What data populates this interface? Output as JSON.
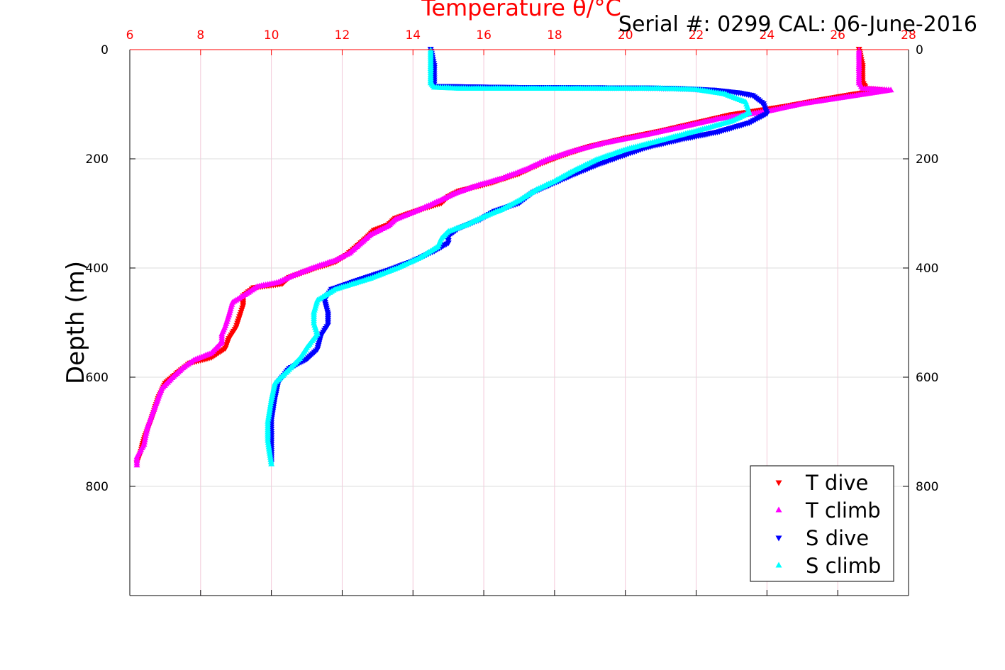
{
  "chart_data": {
    "type": "scatter",
    "title": "",
    "top_axis_label": "Temperature θ/°C",
    "annotation": "Serial #: 0299 CAL: 06-June-2016",
    "xlabel": "",
    "ylabel": "Depth (m)",
    "xlim": [
      6,
      28
    ],
    "ylim": [
      0,
      1000
    ],
    "y_reversed": true,
    "x_ticks": [
      "6",
      "8",
      "10",
      "12",
      "14",
      "16",
      "18",
      "20",
      "22",
      "24",
      "26",
      "28"
    ],
    "y_ticks": [
      "0",
      "200",
      "400",
      "600",
      "800"
    ],
    "grid": true,
    "legend_position": "bottom-right",
    "colors": {
      "axis_top": "#ff0000",
      "grid_x": "#f2c8d8",
      "grid_y": "#dddddd"
    },
    "series": [
      {
        "name": "T dive",
        "marker": "triangle-down",
        "color": "#ff0000",
        "points": [
          [
            26.6,
            0
          ],
          [
            26.7,
            30
          ],
          [
            26.7,
            60
          ],
          [
            26.8,
            72
          ],
          [
            27.3,
            75
          ],
          [
            26.5,
            82
          ],
          [
            25.5,
            93
          ],
          [
            24.5,
            105
          ],
          [
            23.0,
            120
          ],
          [
            21.8,
            138
          ],
          [
            21.0,
            150
          ],
          [
            20.0,
            163
          ],
          [
            19.0,
            178
          ],
          [
            18.2,
            195
          ],
          [
            17.6,
            210
          ],
          [
            17.0,
            228
          ],
          [
            16.2,
            245
          ],
          [
            15.3,
            260
          ],
          [
            15.0,
            270
          ],
          [
            14.8,
            282
          ],
          [
            14.3,
            292
          ],
          [
            13.8,
            303
          ],
          [
            13.5,
            310
          ],
          [
            13.3,
            322
          ],
          [
            12.9,
            332
          ],
          [
            12.7,
            345
          ],
          [
            12.4,
            362
          ],
          [
            12.1,
            378
          ],
          [
            11.8,
            390
          ],
          [
            11.2,
            402
          ],
          [
            10.5,
            418
          ],
          [
            10.3,
            430
          ],
          [
            9.5,
            437
          ],
          [
            9.2,
            452
          ],
          [
            9.2,
            470
          ],
          [
            9.1,
            490
          ],
          [
            9.0,
            510
          ],
          [
            8.8,
            530
          ],
          [
            8.7,
            548
          ],
          [
            8.3,
            565
          ],
          [
            7.7,
            575
          ],
          [
            7.4,
            590
          ],
          [
            7.0,
            612
          ],
          [
            6.8,
            640
          ],
          [
            6.6,
            680
          ],
          [
            6.4,
            715
          ],
          [
            6.3,
            740
          ],
          [
            6.2,
            758
          ]
        ]
      },
      {
        "name": "T climb",
        "marker": "triangle-up",
        "color": "#ff00ff",
        "points": [
          [
            26.6,
            0
          ],
          [
            26.6,
            30
          ],
          [
            26.6,
            60
          ],
          [
            26.7,
            70
          ],
          [
            27.5,
            73
          ],
          [
            26.3,
            85
          ],
          [
            25.0,
            98
          ],
          [
            24.0,
            112
          ],
          [
            22.6,
            126
          ],
          [
            21.5,
            142
          ],
          [
            20.5,
            156
          ],
          [
            19.4,
            170
          ],
          [
            18.5,
            185
          ],
          [
            17.8,
            200
          ],
          [
            17.2,
            218
          ],
          [
            16.5,
            235
          ],
          [
            15.8,
            248
          ],
          [
            15.2,
            262
          ],
          [
            14.5,
            283
          ],
          [
            14.0,
            297
          ],
          [
            13.5,
            310
          ],
          [
            13.3,
            322
          ],
          [
            12.8,
            338
          ],
          [
            12.5,
            355
          ],
          [
            12.2,
            372
          ],
          [
            11.8,
            385
          ],
          [
            11.2,
            398
          ],
          [
            10.6,
            413
          ],
          [
            10.2,
            425
          ],
          [
            9.6,
            433
          ],
          [
            9.3,
            446
          ],
          [
            8.9,
            462
          ],
          [
            8.8,
            485
          ],
          [
            8.7,
            505
          ],
          [
            8.6,
            520
          ],
          [
            8.6,
            535
          ],
          [
            8.3,
            555
          ],
          [
            7.8,
            568
          ],
          [
            7.5,
            582
          ],
          [
            7.2,
            600
          ],
          [
            6.9,
            620
          ],
          [
            6.7,
            655
          ],
          [
            6.5,
            690
          ],
          [
            6.4,
            722
          ],
          [
            6.2,
            745
          ],
          [
            6.2,
            760
          ]
        ]
      },
      {
        "name": "S dive",
        "marker": "triangle-down",
        "color": "#0000ff",
        "points": [
          [
            14.5,
            0
          ],
          [
            14.6,
            30
          ],
          [
            14.6,
            60
          ],
          [
            14.6,
            68
          ],
          [
            16.7,
            70
          ],
          [
            20.6,
            71
          ],
          [
            21.5,
            72
          ],
          [
            22.5,
            75
          ],
          [
            23.2,
            80
          ],
          [
            23.6,
            85
          ],
          [
            23.9,
            100
          ],
          [
            24.0,
            118
          ],
          [
            23.5,
            135
          ],
          [
            22.6,
            152
          ],
          [
            21.6,
            165
          ],
          [
            20.6,
            180
          ],
          [
            19.8,
            198
          ],
          [
            19.2,
            212
          ],
          [
            18.6,
            228
          ],
          [
            18.0,
            245
          ],
          [
            17.4,
            262
          ],
          [
            17.0,
            282
          ],
          [
            16.3,
            297
          ],
          [
            15.9,
            312
          ],
          [
            15.3,
            328
          ],
          [
            15.0,
            342
          ],
          [
            15.0,
            355
          ],
          [
            14.6,
            370
          ],
          [
            14.0,
            388
          ],
          [
            13.3,
            405
          ],
          [
            12.5,
            422
          ],
          [
            11.7,
            440
          ],
          [
            11.5,
            460
          ],
          [
            11.6,
            485
          ],
          [
            11.6,
            505
          ],
          [
            11.4,
            525
          ],
          [
            11.3,
            550
          ],
          [
            11.0,
            568
          ],
          [
            10.5,
            585
          ],
          [
            10.2,
            610
          ],
          [
            10.1,
            640
          ],
          [
            10.0,
            680
          ],
          [
            10.0,
            720
          ],
          [
            10.0,
            758
          ]
        ]
      },
      {
        "name": "S climb",
        "marker": "triangle-up",
        "color": "#00ffff",
        "points": [
          [
            14.5,
            0
          ],
          [
            14.5,
            30
          ],
          [
            14.5,
            60
          ],
          [
            14.6,
            68
          ],
          [
            15.3,
            70
          ],
          [
            17.3,
            70
          ],
          [
            19.2,
            70
          ],
          [
            21.0,
            70
          ],
          [
            22.0,
            72
          ],
          [
            22.8,
            80
          ],
          [
            23.4,
            95
          ],
          [
            23.5,
            115
          ],
          [
            23.0,
            130
          ],
          [
            22.0,
            148
          ],
          [
            21.0,
            165
          ],
          [
            20.0,
            182
          ],
          [
            19.2,
            200
          ],
          [
            18.5,
            222
          ],
          [
            18.0,
            240
          ],
          [
            17.5,
            255
          ],
          [
            17.0,
            275
          ],
          [
            16.5,
            292
          ],
          [
            16.0,
            305
          ],
          [
            15.5,
            320
          ],
          [
            15.0,
            332
          ],
          [
            14.8,
            345
          ],
          [
            14.7,
            360
          ],
          [
            14.2,
            380
          ],
          [
            13.6,
            398
          ],
          [
            12.8,
            418
          ],
          [
            11.8,
            438
          ],
          [
            11.3,
            458
          ],
          [
            11.2,
            480
          ],
          [
            11.2,
            500
          ],
          [
            11.3,
            520
          ],
          [
            11.0,
            545
          ],
          [
            10.8,
            565
          ],
          [
            10.5,
            585
          ],
          [
            10.1,
            610
          ],
          [
            10.0,
            640
          ],
          [
            9.9,
            680
          ],
          [
            9.9,
            715
          ],
          [
            10.0,
            758
          ]
        ]
      }
    ]
  }
}
